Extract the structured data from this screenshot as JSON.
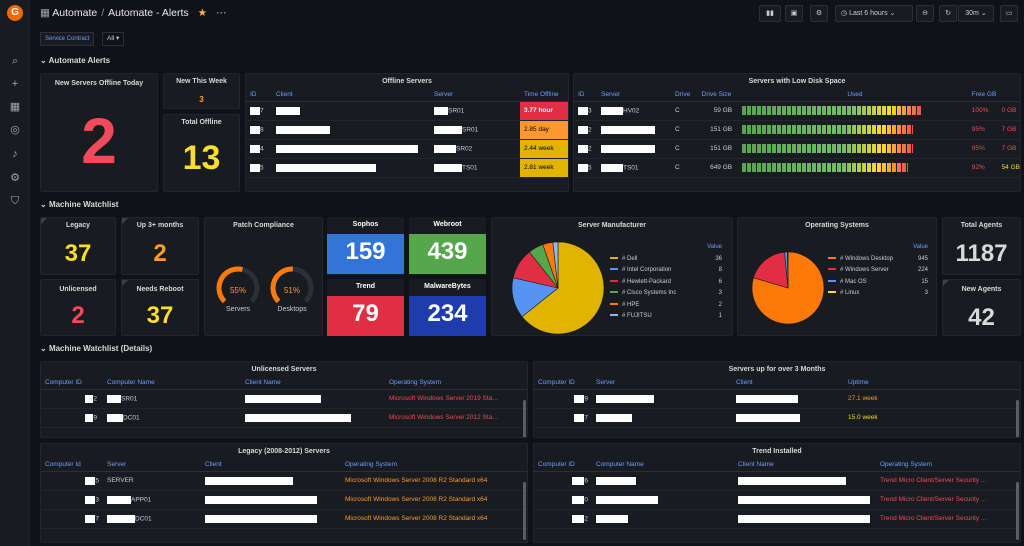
{
  "breadcrumb": {
    "folder": "Automate",
    "dashboard": "Automate - Alerts"
  },
  "toolbar": {
    "time_range": "Last 6 hours",
    "refresh": "30m"
  },
  "variables": {
    "label": "Service Contract",
    "value": "All"
  },
  "rows": {
    "alerts": "Automate Alerts",
    "watchlist": "Machine Watchlist",
    "details": "Machine Watchlist (Details)"
  },
  "alerts": {
    "new_offline_today": {
      "title": "New Servers Offline Today",
      "value": "2"
    },
    "new_this_week": {
      "title": "New This Week",
      "value": "3"
    },
    "total_offline": {
      "title": "Total Offline",
      "value": "13"
    }
  },
  "offline_servers": {
    "title": "Offline Servers",
    "columns": [
      "ID",
      "Client",
      "Server",
      "Time Offline"
    ],
    "rows": [
      {
        "id": "7",
        "server": "SR01",
        "time": "3.77 hour",
        "level": "red"
      },
      {
        "id": "8",
        "server": "SR01",
        "time": "2.85 day",
        "level": "orange"
      },
      {
        "id": "4",
        "server": "SR02",
        "time": "2.44 week",
        "level": "yellow"
      },
      {
        "id": "5",
        "server": "TS01",
        "time": "2.81 week",
        "level": "yellow"
      }
    ]
  },
  "low_disk": {
    "title": "Servers with Low Disk Space",
    "columns": [
      "ID",
      "Server",
      "Drive",
      "Drive Size",
      "Used",
      "Free GB"
    ],
    "rows": [
      {
        "id": "3",
        "server": "HV02",
        "drive": "C",
        "size": "59 GB",
        "used": "100%",
        "used_pct": 100,
        "free": "0 GB",
        "free_color": "red"
      },
      {
        "id": "2",
        "server": "",
        "drive": "C",
        "size": "151 GB",
        "used": "95%",
        "used_pct": 95,
        "free": "7 GB",
        "free_color": "red"
      },
      {
        "id": "2",
        "server": "",
        "drive": "C",
        "size": "151 GB",
        "used": "95%",
        "used_pct": 95,
        "free": "7 GB",
        "free_color": "red"
      },
      {
        "id": "5",
        "server": "TS01",
        "drive": "C",
        "size": "649 GB",
        "used": "92%",
        "used_pct": 92,
        "free": "54 GB",
        "free_color": "yellow"
      }
    ]
  },
  "watchlist": {
    "legacy": {
      "title": "Legacy",
      "value": "37"
    },
    "up3": {
      "title": "Up 3+ months",
      "value": "2"
    },
    "unlicensed": {
      "title": "Unlicensed",
      "value": "2"
    },
    "reboot": {
      "title": "Needs Reboot",
      "value": "37"
    },
    "patch": {
      "title": "Patch Compliance",
      "servers_label": "Servers",
      "servers_value": "55%",
      "servers_pct": 55,
      "desktops_label": "Desktops",
      "desktops_value": "51%",
      "desktops_pct": 51
    },
    "sophos": {
      "title": "Sophos",
      "value": "159",
      "color": "#3274d9"
    },
    "webroot": {
      "title": "Webroot",
      "value": "439",
      "color": "#56a64b"
    },
    "trend": {
      "title": "Trend",
      "value": "79",
      "color": "#e02f44"
    },
    "malwarebytes": {
      "title": "MalwareBytes",
      "value": "234",
      "color": "#1f3cad"
    },
    "total_agents": {
      "title": "Total Agents",
      "value": "1187"
    },
    "new_agents": {
      "title": "New Agents",
      "value": "42"
    }
  },
  "chart_data": [
    {
      "type": "pie",
      "title": "Server Manufacturer",
      "legend_header": "Value",
      "categories": [
        "# Dell",
        "# Intel Corporation",
        "# Hewlett-Packard",
        "# Cisco Systems Inc",
        "# HPE",
        "# FUJITSU"
      ],
      "values": [
        36,
        8,
        6,
        3,
        2,
        1
      ],
      "colors": [
        "#e0b400",
        "#5794f2",
        "#e02f44",
        "#56a64b",
        "#ff780a",
        "#8ab8ff"
      ]
    },
    {
      "type": "pie",
      "title": "Operating Systems",
      "legend_header": "Value",
      "categories": [
        "# Windows Desktop",
        "# Windows Server",
        "# Mac OS",
        "# Linux"
      ],
      "values": [
        945,
        224,
        15,
        3
      ],
      "colors": [
        "#ff780a",
        "#e02f44",
        "#5794f2",
        "#fade2a"
      ]
    }
  ],
  "unlicensed_servers": {
    "title": "Unlicensed Servers",
    "columns": [
      "Computer ID",
      "Computer Name",
      "Client Name",
      "Operating System"
    ],
    "rows": [
      {
        "id": "2",
        "name": "SR01",
        "os": "Microsoft Windows Server 2019 Sta..."
      },
      {
        "id": "9",
        "name": "DC01",
        "os": "Microsoft Windows Server 2012 Sta..."
      }
    ]
  },
  "up3_servers": {
    "title": "Servers up for over 3 Months",
    "columns": [
      "Computer ID",
      "Server",
      "Client",
      "Uptime"
    ],
    "rows": [
      {
        "id": "9",
        "uptime": "27.1 week"
      },
      {
        "id": "7",
        "uptime": "15.0 week"
      }
    ]
  },
  "legacy_servers": {
    "title": "Legacy (2008-2012) Servers",
    "columns": [
      "Computer Id",
      "Server",
      "Client",
      "Operating System"
    ],
    "rows": [
      {
        "id": "5",
        "server": "SERVER",
        "os": "Microsoft Windows Server 2008 R2 Standard x64"
      },
      {
        "id": "3",
        "server": "APP01",
        "os": "Microsoft Windows Server 2008 R2 Standard x64"
      },
      {
        "id": "7",
        "server": "DC01",
        "os": "Microsoft Windows Server 2008 R2 Standard x64"
      }
    ]
  },
  "trend_installed": {
    "title": "Trend Installed",
    "columns": [
      "Computer ID",
      "Computer Name",
      "Client Name",
      "Operating System"
    ],
    "rows": [
      {
        "id": "6",
        "os": "Trend Micro Client/Server Security ..."
      },
      {
        "id": "0",
        "os": "Trend Micro Client/Server Security ..."
      },
      {
        "id": "2",
        "os": "Trend Micro Client/Server Security ..."
      }
    ]
  }
}
